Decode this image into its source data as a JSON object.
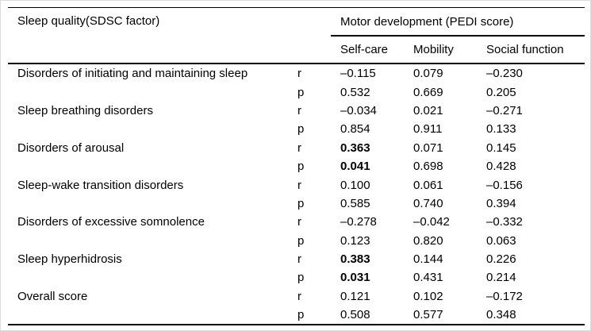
{
  "table": {
    "col1_header": "Sleep quality(SDSC factor)",
    "group_header": "Motor development (PEDI score)",
    "sub_headers": [
      "Self-care",
      "Mobility",
      "Social function"
    ],
    "rows": [
      {
        "factor": "Disorders of initiating and maintaining sleep",
        "stats": [
          {
            "label": "r",
            "values": [
              {
                "text": "–0.115",
                "bold": false
              },
              {
                "text": "0.079",
                "bold": false
              },
              {
                "text": "–0.230",
                "bold": false
              }
            ]
          },
          {
            "label": "p",
            "values": [
              {
                "text": "0.532",
                "bold": false
              },
              {
                "text": "0.669",
                "bold": false
              },
              {
                "text": "0.205",
                "bold": false
              }
            ]
          }
        ]
      },
      {
        "factor": "Sleep breathing disorders",
        "stats": [
          {
            "label": "r",
            "values": [
              {
                "text": "–0.034",
                "bold": false
              },
              {
                "text": "0.021",
                "bold": false
              },
              {
                "text": "–0.271",
                "bold": false
              }
            ]
          },
          {
            "label": "p",
            "values": [
              {
                "text": "0.854",
                "bold": false
              },
              {
                "text": "0.911",
                "bold": false
              },
              {
                "text": "0.133",
                "bold": false
              }
            ]
          }
        ]
      },
      {
        "factor": "Disorders of arousal",
        "stats": [
          {
            "label": "r",
            "values": [
              {
                "text": "0.363",
                "bold": true
              },
              {
                "text": "0.071",
                "bold": false
              },
              {
                "text": "0.145",
                "bold": false
              }
            ]
          },
          {
            "label": "p",
            "values": [
              {
                "text": "0.041",
                "bold": true
              },
              {
                "text": "0.698",
                "bold": false
              },
              {
                "text": "0.428",
                "bold": false
              }
            ]
          }
        ]
      },
      {
        "factor": "Sleep-wake transition disorders",
        "stats": [
          {
            "label": "r",
            "values": [
              {
                "text": "0.100",
                "bold": false
              },
              {
                "text": "0.061",
                "bold": false
              },
              {
                "text": "–0.156",
                "bold": false
              }
            ]
          },
          {
            "label": "p",
            "values": [
              {
                "text": "0.585",
                "bold": false
              },
              {
                "text": "0.740",
                "bold": false
              },
              {
                "text": "0.394",
                "bold": false
              }
            ]
          }
        ]
      },
      {
        "factor": "Disorders of excessive somnolence",
        "stats": [
          {
            "label": "r",
            "values": [
              {
                "text": "–0.278",
                "bold": false
              },
              {
                "text": "–0.042",
                "bold": false
              },
              {
                "text": "–0.332",
                "bold": false
              }
            ]
          },
          {
            "label": "p",
            "values": [
              {
                "text": "0.123",
                "bold": false
              },
              {
                "text": "0.820",
                "bold": false
              },
              {
                "text": "0.063",
                "bold": false
              }
            ]
          }
        ]
      },
      {
        "factor": "Sleep hyperhidrosis",
        "stats": [
          {
            "label": "r",
            "values": [
              {
                "text": "0.383",
                "bold": true
              },
              {
                "text": "0.144",
                "bold": false
              },
              {
                "text": "0.226",
                "bold": false
              }
            ]
          },
          {
            "label": "p",
            "values": [
              {
                "text": "0.031",
                "bold": true
              },
              {
                "text": "0.431",
                "bold": false
              },
              {
                "text": "0.214",
                "bold": false
              }
            ]
          }
        ]
      },
      {
        "factor": "Overall score",
        "stats": [
          {
            "label": "r",
            "values": [
              {
                "text": "0.121",
                "bold": false
              },
              {
                "text": "0.102",
                "bold": false
              },
              {
                "text": "–0.172",
                "bold": false
              }
            ]
          },
          {
            "label": "p",
            "values": [
              {
                "text": "0.508",
                "bold": false
              },
              {
                "text": "0.577",
                "bold": false
              },
              {
                "text": "0.348",
                "bold": false
              }
            ]
          }
        ]
      }
    ]
  }
}
